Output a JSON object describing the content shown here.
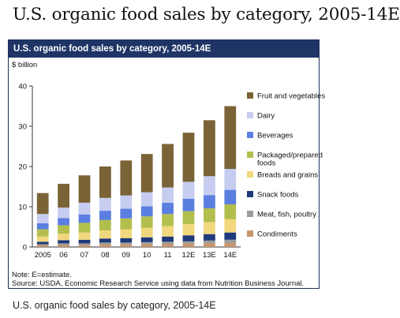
{
  "page_title": "U.S. organic food sales by category, 2005-14E",
  "figure_header": "U.S. organic food sales by category, 2005-14E",
  "note": "Note: E=estimate.",
  "source": "Source: USDA, Economic Research Service using data from Nutrition Business Journal.",
  "caption": "U.S. organic food sales by category, 2005-14E",
  "chart_data": {
    "type": "bar",
    "stacked": true,
    "ylabel": "$ billion",
    "ylim": [
      0,
      40
    ],
    "yticks": [
      0,
      10,
      20,
      30,
      40
    ],
    "grid": false,
    "legend_position": "right",
    "categories": [
      "2005",
      "06",
      "07",
      "08",
      "09",
      "10",
      "11",
      "12E",
      "13E",
      "14E"
    ],
    "series": [
      {
        "name": "Condiments",
        "color": "#c9956b",
        "values": [
          0.4,
          0.5,
          0.5,
          0.6,
          0.6,
          0.7,
          0.7,
          0.8,
          0.9,
          1.0
        ]
      },
      {
        "name": "Meat, fish, poultry",
        "color": "#9a9d9a",
        "values": [
          0.3,
          0.4,
          0.4,
          0.5,
          0.5,
          0.5,
          0.6,
          0.6,
          0.7,
          0.8
        ]
      },
      {
        "name": "Snack foods",
        "color": "#1f3a7a",
        "values": [
          0.6,
          0.8,
          0.9,
          1.0,
          1.1,
          1.2,
          1.3,
          1.5,
          1.6,
          1.8
        ]
      },
      {
        "name": "Breads and grains",
        "color": "#f1d77d",
        "values": [
          1.3,
          1.6,
          1.8,
          2.0,
          2.2,
          2.4,
          2.6,
          2.8,
          3.0,
          3.3
        ]
      },
      {
        "name": "Packaged/prepared foods",
        "color": "#b3bf4d",
        "values": [
          1.8,
          2.1,
          2.4,
          2.6,
          2.7,
          2.8,
          3.0,
          3.2,
          3.4,
          3.7
        ]
      },
      {
        "name": "Beverages",
        "color": "#5b7fe0",
        "values": [
          1.5,
          1.8,
          2.1,
          2.3,
          2.4,
          2.5,
          2.8,
          3.1,
          3.3,
          3.6
        ]
      },
      {
        "name": "Dairy",
        "color": "#c6cdf0",
        "values": [
          2.3,
          2.6,
          2.9,
          3.2,
          3.3,
          3.5,
          3.8,
          4.2,
          4.7,
          5.2
        ]
      },
      {
        "name": "Fruit and vegetables",
        "color": "#7a6336",
        "values": [
          5.2,
          5.9,
          6.8,
          7.8,
          8.7,
          9.5,
          10.8,
          12.2,
          13.9,
          15.6
        ]
      }
    ]
  }
}
